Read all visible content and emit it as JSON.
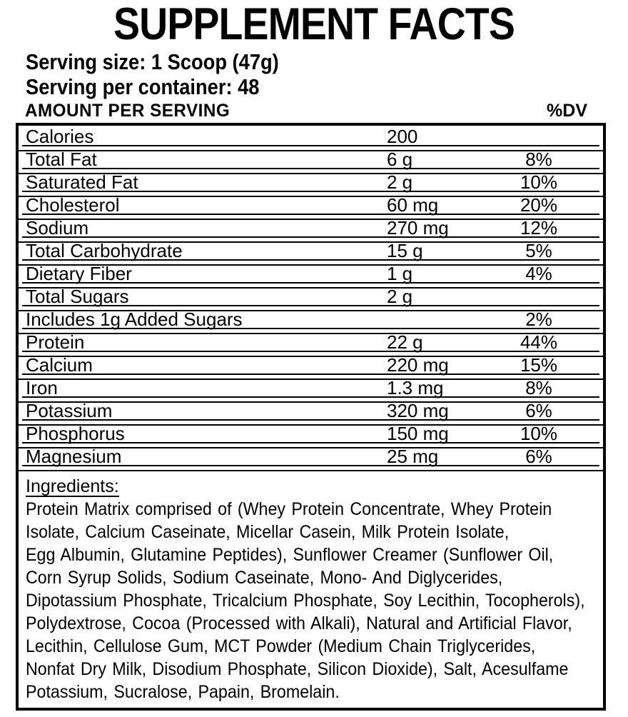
{
  "title": "SUPPLEMENT FACTS",
  "serving": {
    "size_label": "Serving size: 1 Scoop (47g)",
    "per_container_label": "Serving per container: 48"
  },
  "table": {
    "header": {
      "amount": "AMOUNT PER SERVING",
      "dv": "%DV"
    },
    "rows": [
      {
        "name": "Calories",
        "amount": "200",
        "dv": ""
      },
      {
        "name": "Total Fat",
        "amount": "6 g",
        "dv": "8%"
      },
      {
        "name": "Saturated Fat",
        "amount": "2 g",
        "dv": "10%"
      },
      {
        "name": "Cholesterol",
        "amount": "60 mg",
        "dv": "20%"
      },
      {
        "name": "Sodium",
        "amount": "270 mg",
        "dv": "12%"
      },
      {
        "name": "Total Carbohydrate",
        "amount": "15 g",
        "dv": "5%"
      },
      {
        "name": "Dietary Fiber",
        "amount": "1 g",
        "dv": "4%"
      },
      {
        "name": "Total Sugars",
        "amount": "2 g",
        "dv": ""
      },
      {
        "name": "Includes 1g Added Sugars",
        "amount": "",
        "dv": "2%"
      },
      {
        "name": "Protein",
        "amount": "22 g",
        "dv": "44%"
      },
      {
        "name": "Calcium",
        "amount": "220 mg",
        "dv": "15%"
      },
      {
        "name": "Iron",
        "amount": "1.3 mg",
        "dv": "8%"
      },
      {
        "name": "Potassium",
        "amount": "320 mg",
        "dv": "6%"
      },
      {
        "name": "Phosphorus",
        "amount": "150 mg",
        "dv": "10%"
      },
      {
        "name": "Magnesium",
        "amount": "25 mg",
        "dv": "6%"
      }
    ]
  },
  "ingredients": {
    "label": "Ingredients:",
    "lines": [
      "Protein Matrix comprised of (Whey Protein Concentrate, Whey Protein",
      "Isolate, Calcium Caseinate, Micellar Casein, Milk Protein Isolate,",
      "Egg Albumin, Glutamine Peptides), Sunflower Creamer (Sunflower Oil,",
      "Corn Syrup Solids, Sodium Caseinate, Mono- And Diglycerides,",
      "Dipotassium Phosphate, Tricalcium Phosphate, Soy Lecithin, Tocopherols),",
      "Polydextrose, Cocoa (Processed with Alkali), Natural and Artificial Flavor,",
      "Lecithin, Cellulose Gum, MCT Powder (Medium Chain Triglycerides,",
      "Nonfat Dry Milk, Disodium Phosphate, Silicon Dioxide), Salt, Acesulfame",
      "Potassium, Sucralose, Papain, Bromelain."
    ]
  },
  "colors": {
    "text": "#000000",
    "background": "#ffffff",
    "border": "#000000"
  }
}
